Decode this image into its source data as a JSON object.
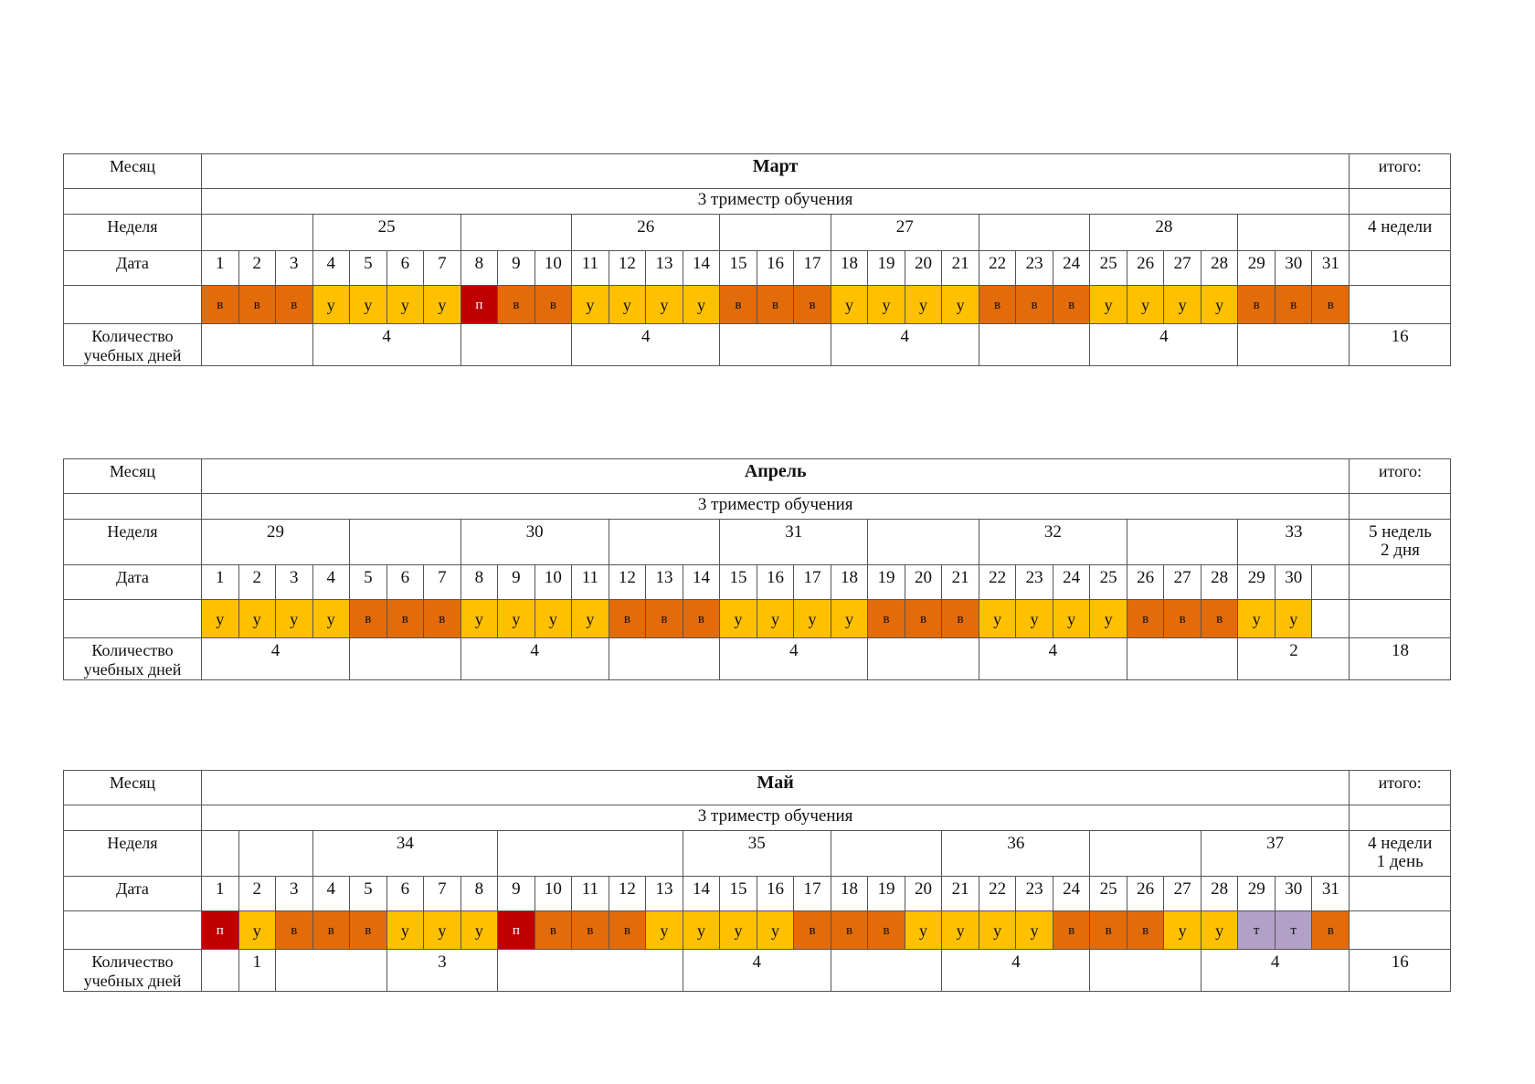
{
  "colors": {
    "u": "#FFC000",
    "v": "#E26B0A",
    "p": "#C00000",
    "t": "#B1A0C7"
  },
  "labels": {
    "month": "Месяц",
    "week": "Неделя",
    "date": "Дата",
    "count_line1": "Количество",
    "count_line2": "учебных дней",
    "total": "итого:"
  },
  "tables": [
    {
      "month": "Март",
      "trimester": "3 триместр обучения",
      "total_weeks": [
        "4 недели"
      ],
      "total_days": "16",
      "days": [
        {
          "d": "1",
          "k": "в"
        },
        {
          "d": "2",
          "k": "в"
        },
        {
          "d": "3",
          "k": "в"
        },
        {
          "d": "4",
          "k": "у"
        },
        {
          "d": "5",
          "k": "у"
        },
        {
          "d": "6",
          "k": "у"
        },
        {
          "d": "7",
          "k": "у"
        },
        {
          "d": "8",
          "k": "п"
        },
        {
          "d": "9",
          "k": "в"
        },
        {
          "d": "10",
          "k": "в"
        },
        {
          "d": "11",
          "k": "у"
        },
        {
          "d": "12",
          "k": "у"
        },
        {
          "d": "13",
          "k": "у"
        },
        {
          "d": "14",
          "k": "у"
        },
        {
          "d": "15",
          "k": "в"
        },
        {
          "d": "16",
          "k": "в"
        },
        {
          "d": "17",
          "k": "в"
        },
        {
          "d": "18",
          "k": "у"
        },
        {
          "d": "19",
          "k": "у"
        },
        {
          "d": "20",
          "k": "у"
        },
        {
          "d": "21",
          "k": "у"
        },
        {
          "d": "22",
          "k": "в"
        },
        {
          "d": "23",
          "k": "в"
        },
        {
          "d": "24",
          "k": "в"
        },
        {
          "d": "25",
          "k": "у"
        },
        {
          "d": "26",
          "k": "у"
        },
        {
          "d": "27",
          "k": "у"
        },
        {
          "d": "28",
          "k": "у"
        },
        {
          "d": "29",
          "k": "в"
        },
        {
          "d": "30",
          "k": "в"
        },
        {
          "d": "31",
          "k": "в"
        }
      ],
      "weeks": [
        {
          "span": 3,
          "label": ""
        },
        {
          "span": 4,
          "label": "25"
        },
        {
          "span": 3,
          "label": ""
        },
        {
          "span": 4,
          "label": "26"
        },
        {
          "span": 3,
          "label": ""
        },
        {
          "span": 4,
          "label": "27"
        },
        {
          "span": 3,
          "label": ""
        },
        {
          "span": 4,
          "label": "28"
        },
        {
          "span": 3,
          "label": ""
        }
      ],
      "counts": [
        {
          "span": 3,
          "label": ""
        },
        {
          "span": 4,
          "label": "4"
        },
        {
          "span": 3,
          "label": ""
        },
        {
          "span": 4,
          "label": "4"
        },
        {
          "span": 3,
          "label": ""
        },
        {
          "span": 4,
          "label": "4"
        },
        {
          "span": 3,
          "label": ""
        },
        {
          "span": 4,
          "label": "4"
        },
        {
          "span": 3,
          "label": ""
        }
      ]
    },
    {
      "month": "Апрель",
      "trimester": "3 триместр обучения",
      "total_weeks": [
        "5 недель",
        "2 дня"
      ],
      "total_days": "18",
      "days": [
        {
          "d": "1",
          "k": "у"
        },
        {
          "d": "2",
          "k": "у"
        },
        {
          "d": "3",
          "k": "у"
        },
        {
          "d": "4",
          "k": "у"
        },
        {
          "d": "5",
          "k": "в"
        },
        {
          "d": "6",
          "k": "в"
        },
        {
          "d": "7",
          "k": "в"
        },
        {
          "d": "8",
          "k": "у"
        },
        {
          "d": "9",
          "k": "у"
        },
        {
          "d": "10",
          "k": "у"
        },
        {
          "d": "11",
          "k": "у"
        },
        {
          "d": "12",
          "k": "в"
        },
        {
          "d": "13",
          "k": "в"
        },
        {
          "d": "14",
          "k": "в"
        },
        {
          "d": "15",
          "k": "у"
        },
        {
          "d": "16",
          "k": "у"
        },
        {
          "d": "17",
          "k": "у"
        },
        {
          "d": "18",
          "k": "у"
        },
        {
          "d": "19",
          "k": "в"
        },
        {
          "d": "20",
          "k": "в"
        },
        {
          "d": "21",
          "k": "в"
        },
        {
          "d": "22",
          "k": "у"
        },
        {
          "d": "23",
          "k": "у"
        },
        {
          "d": "24",
          "k": "у"
        },
        {
          "d": "25",
          "k": "у"
        },
        {
          "d": "26",
          "k": "в"
        },
        {
          "d": "27",
          "k": "в"
        },
        {
          "d": "28",
          "k": "в"
        },
        {
          "d": "29",
          "k": "у"
        },
        {
          "d": "30",
          "k": "у"
        },
        {
          "d": "",
          "k": ""
        }
      ],
      "weeks": [
        {
          "span": 4,
          "label": "29"
        },
        {
          "span": 3,
          "label": ""
        },
        {
          "span": 4,
          "label": "30"
        },
        {
          "span": 3,
          "label": ""
        },
        {
          "span": 4,
          "label": "31"
        },
        {
          "span": 3,
          "label": ""
        },
        {
          "span": 4,
          "label": "32"
        },
        {
          "span": 3,
          "label": ""
        },
        {
          "span": 3,
          "label": "33"
        }
      ],
      "counts": [
        {
          "span": 4,
          "label": "4"
        },
        {
          "span": 3,
          "label": ""
        },
        {
          "span": 4,
          "label": "4"
        },
        {
          "span": 3,
          "label": ""
        },
        {
          "span": 4,
          "label": "4"
        },
        {
          "span": 3,
          "label": ""
        },
        {
          "span": 4,
          "label": "4"
        },
        {
          "span": 3,
          "label": ""
        },
        {
          "span": 3,
          "label": "2"
        }
      ]
    },
    {
      "month": "Май",
      "trimester": "3 триместр обучения",
      "total_weeks": [
        "4 недели",
        "1 день"
      ],
      "total_days": "16",
      "days": [
        {
          "d": "1",
          "k": "п"
        },
        {
          "d": "2",
          "k": "у"
        },
        {
          "d": "3",
          "k": "в"
        },
        {
          "d": "4",
          "k": "в"
        },
        {
          "d": "5",
          "k": "в"
        },
        {
          "d": "6",
          "k": "у"
        },
        {
          "d": "7",
          "k": "у"
        },
        {
          "d": "8",
          "k": "у"
        },
        {
          "d": "9",
          "k": "п"
        },
        {
          "d": "10",
          "k": "в"
        },
        {
          "d": "11",
          "k": "в"
        },
        {
          "d": "12",
          "k": "в"
        },
        {
          "d": "13",
          "k": "у"
        },
        {
          "d": "14",
          "k": "у"
        },
        {
          "d": "15",
          "k": "у"
        },
        {
          "d": "16",
          "k": "у"
        },
        {
          "d": "17",
          "k": "в"
        },
        {
          "d": "18",
          "k": "в"
        },
        {
          "d": "19",
          "k": "в"
        },
        {
          "d": "20",
          "k": "у"
        },
        {
          "d": "21",
          "k": "у"
        },
        {
          "d": "22",
          "k": "у"
        },
        {
          "d": "23",
          "k": "у"
        },
        {
          "d": "24",
          "k": "в"
        },
        {
          "d": "25",
          "k": "в"
        },
        {
          "d": "26",
          "k": "в"
        },
        {
          "d": "27",
          "k": "у"
        },
        {
          "d": "28",
          "k": "у"
        },
        {
          "d": "29",
          "k": "т"
        },
        {
          "d": "30",
          "k": "т"
        },
        {
          "d": "31",
          "k": "в"
        }
      ],
      "weeks": [
        {
          "span": 1,
          "label": ""
        },
        {
          "span": 2,
          "label": ""
        },
        {
          "span": 5,
          "label": "34"
        },
        {
          "span": 5,
          "label": ""
        },
        {
          "span": 4,
          "label": "35"
        },
        {
          "span": 3,
          "label": ""
        },
        {
          "span": 4,
          "label": "36"
        },
        {
          "span": 3,
          "label": ""
        },
        {
          "span": 4,
          "label": "37"
        }
      ],
      "counts": [
        {
          "span": 1,
          "label": ""
        },
        {
          "span": 1,
          "label": "1"
        },
        {
          "span": 3,
          "label": ""
        },
        {
          "span": 3,
          "label": "3"
        },
        {
          "span": 5,
          "label": ""
        },
        {
          "span": 4,
          "label": "4"
        },
        {
          "span": 3,
          "label": ""
        },
        {
          "span": 4,
          "label": "4"
        },
        {
          "span": 3,
          "label": ""
        },
        {
          "span": 4,
          "label": "4"
        }
      ]
    }
  ]
}
